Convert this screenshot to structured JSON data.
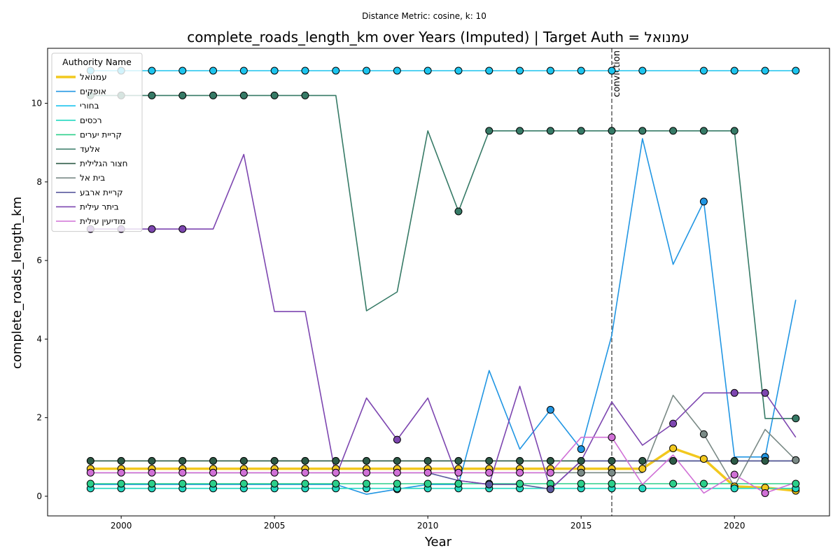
{
  "chart_data": {
    "type": "line",
    "suptitle": "Distance Metric: cosine, k: 10",
    "title": "complete_roads_length_km over Years (Imputed) | Target Auth = עמנואל",
    "xlabel": "Year",
    "ylabel": "complete_roads_length_km",
    "xlim": [
      1997.6,
      2023.1
    ],
    "ylim": [
      -0.5,
      11.4
    ],
    "xticks": [
      2000,
      2005,
      2010,
      2015,
      2020
    ],
    "yticks": [
      0,
      2,
      4,
      6,
      8,
      10
    ],
    "grid": false,
    "legend": {
      "title": "Authority Name",
      "placement": "top-left"
    },
    "vline": {
      "x": 2016,
      "label": "conviction",
      "color": "#666666"
    },
    "years": [
      1999,
      2000,
      2001,
      2002,
      2003,
      2004,
      2005,
      2006,
      2007,
      2008,
      2009,
      2010,
      2011,
      2012,
      2013,
      2014,
      2015,
      2016,
      2017,
      2018,
      2019,
      2020,
      2021,
      2022
    ],
    "series": [
      {
        "name": "עמנואל",
        "color": "#f2c81e",
        "width": 3.5,
        "values": [
          0.7,
          0.7,
          0.7,
          0.7,
          0.7,
          0.7,
          0.7,
          0.7,
          0.7,
          0.7,
          0.7,
          0.7,
          0.7,
          0.7,
          0.7,
          0.7,
          0.7,
          0.7,
          0.7,
          1.22,
          0.95,
          0.25,
          0.22,
          0.14
        ],
        "markers": [
          1999,
          2000,
          2001,
          2002,
          2003,
          2004,
          2005,
          2006,
          2007,
          2008,
          2009,
          2010,
          2011,
          2012,
          2013,
          2014,
          2015,
          2016,
          2017,
          2018,
          2019,
          2020,
          2021,
          2022
        ]
      },
      {
        "name": "אופקים",
        "color": "#2196e3",
        "width": 1.6,
        "values": [
          0.3,
          0.3,
          0.3,
          0.3,
          0.3,
          0.3,
          0.3,
          0.3,
          0.3,
          0.05,
          0.18,
          0.3,
          0.3,
          3.2,
          1.2,
          2.2,
          1.2,
          4.1,
          9.1,
          5.9,
          7.5,
          1.0,
          1.0,
          5.0
        ],
        "markers": [
          2009,
          2014,
          2015,
          2019,
          2021
        ]
      },
      {
        "name": "בחורי",
        "color": "#1cc4ee",
        "width": 1.6,
        "values": [
          10.83,
          10.83,
          10.83,
          10.83,
          10.83,
          10.83,
          10.83,
          10.83,
          10.83,
          10.83,
          10.83,
          10.83,
          10.83,
          10.83,
          10.83,
          10.83,
          10.83,
          10.83,
          10.83,
          10.83,
          10.83,
          10.83,
          10.83,
          10.83
        ],
        "markers": [
          1999,
          2000,
          2001,
          2002,
          2003,
          2004,
          2005,
          2006,
          2007,
          2008,
          2009,
          2010,
          2011,
          2012,
          2013,
          2014,
          2015,
          2016,
          2017,
          2019,
          2020,
          2021,
          2022
        ]
      },
      {
        "name": "רכסים",
        "color": "#22d8c0",
        "width": 1.6,
        "values": [
          0.2,
          0.2,
          0.2,
          0.2,
          0.2,
          0.2,
          0.2,
          0.2,
          0.2,
          0.2,
          0.2,
          0.2,
          0.2,
          0.2,
          0.2,
          0.2,
          0.2,
          0.2,
          0.2,
          0.2,
          0.2,
          0.2,
          0.2,
          0.2
        ],
        "markers": [
          1999,
          2000,
          2001,
          2002,
          2003,
          2004,
          2005,
          2006,
          2007,
          2008,
          2009,
          2010,
          2011,
          2012,
          2013,
          2014,
          2015,
          2016,
          2017,
          2020,
          2022
        ]
      },
      {
        "name": "קריית יערים",
        "color": "#2bcf8a",
        "width": 1.6,
        "values": [
          0.32,
          0.32,
          0.32,
          0.32,
          0.32,
          0.32,
          0.32,
          0.32,
          0.32,
          0.32,
          0.32,
          0.32,
          0.32,
          0.32,
          0.32,
          0.32,
          0.32,
          0.32,
          0.32,
          0.32,
          0.32,
          0.32,
          0.32,
          0.32
        ],
        "markers": [
          1999,
          2000,
          2001,
          2002,
          2003,
          2004,
          2005,
          2006,
          2007,
          2008,
          2009,
          2010,
          2011,
          2012,
          2013,
          2014,
          2015,
          2016,
          2018,
          2019,
          2022
        ]
      },
      {
        "name": "אלעד",
        "color": "#367a66",
        "width": 1.6,
        "values": [
          10.2,
          10.2,
          10.2,
          10.2,
          10.2,
          10.2,
          10.2,
          10.2,
          10.2,
          4.72,
          5.2,
          9.3,
          7.25,
          9.3,
          9.3,
          9.3,
          9.3,
          9.3,
          9.3,
          9.3,
          9.3,
          9.3,
          1.98,
          1.98
        ],
        "markers": [
          1999,
          2000,
          2001,
          2002,
          2003,
          2004,
          2005,
          2006,
          2011,
          2012,
          2013,
          2014,
          2015,
          2016,
          2017,
          2018,
          2019,
          2020,
          2022
        ]
      },
      {
        "name": "חצור הגלילית",
        "color": "#2c5a46",
        "width": 1.6,
        "values": [
          0.9,
          0.9,
          0.9,
          0.9,
          0.9,
          0.9,
          0.9,
          0.9,
          0.9,
          0.9,
          0.9,
          0.9,
          0.9,
          0.9,
          0.9,
          0.9,
          0.9,
          0.9,
          0.9,
          0.9,
          0.9,
          0.9,
          0.9,
          0.9
        ],
        "markers": [
          1999,
          2000,
          2001,
          2002,
          2003,
          2004,
          2005,
          2006,
          2007,
          2008,
          2009,
          2010,
          2011,
          2012,
          2013,
          2014,
          2015,
          2016,
          2017,
          2018,
          2020,
          2021
        ]
      },
      {
        "name": "בית אל",
        "color": "#7a8a86",
        "width": 1.6,
        "values": [
          0.6,
          0.6,
          0.6,
          0.6,
          0.6,
          0.6,
          0.6,
          0.6,
          0.6,
          0.6,
          0.6,
          0.6,
          0.6,
          0.6,
          0.6,
          0.6,
          0.6,
          0.6,
          0.6,
          2.57,
          1.58,
          0.25,
          1.7,
          0.92
        ],
        "markers": [
          2015,
          2016,
          2019,
          2022
        ]
      },
      {
        "name": "קריית ארבע",
        "color": "#5a5a9e",
        "width": 1.6,
        "values": [
          0.6,
          0.6,
          0.6,
          0.6,
          0.6,
          0.6,
          0.6,
          0.6,
          0.6,
          0.6,
          0.6,
          0.6,
          0.4,
          0.3,
          0.3,
          0.18,
          0.9,
          0.9,
          0.9,
          0.9,
          0.9,
          0.9,
          0.9,
          0.9
        ],
        "markers": [
          2012,
          2014
        ]
      },
      {
        "name": "ביתר עילית",
        "color": "#7d46b0",
        "width": 1.6,
        "values": [
          6.8,
          6.8,
          6.8,
          6.8,
          6.8,
          8.7,
          4.7,
          4.7,
          0.5,
          2.5,
          1.44,
          2.5,
          0.4,
          0.3,
          2.8,
          0.18,
          0.9,
          2.4,
          1.3,
          1.85,
          2.63,
          2.63,
          2.63,
          1.5
        ],
        "markers": [
          1999,
          2000,
          2001,
          2002,
          2009,
          2018,
          2020,
          2021
        ]
      },
      {
        "name": "מודיעין עילית",
        "color": "#d070d6",
        "width": 1.6,
        "values": [
          0.6,
          0.6,
          0.6,
          0.6,
          0.6,
          0.6,
          0.6,
          0.6,
          0.6,
          0.6,
          0.6,
          0.6,
          0.6,
          0.6,
          0.6,
          0.6,
          1.5,
          1.5,
          0.3,
          1.05,
          0.08,
          0.55,
          0.08,
          0.35
        ],
        "markers": [
          1999,
          2000,
          2001,
          2002,
          2003,
          2004,
          2005,
          2006,
          2007,
          2008,
          2009,
          2010,
          2011,
          2012,
          2013,
          2014,
          2016,
          2020,
          2021
        ]
      }
    ]
  }
}
